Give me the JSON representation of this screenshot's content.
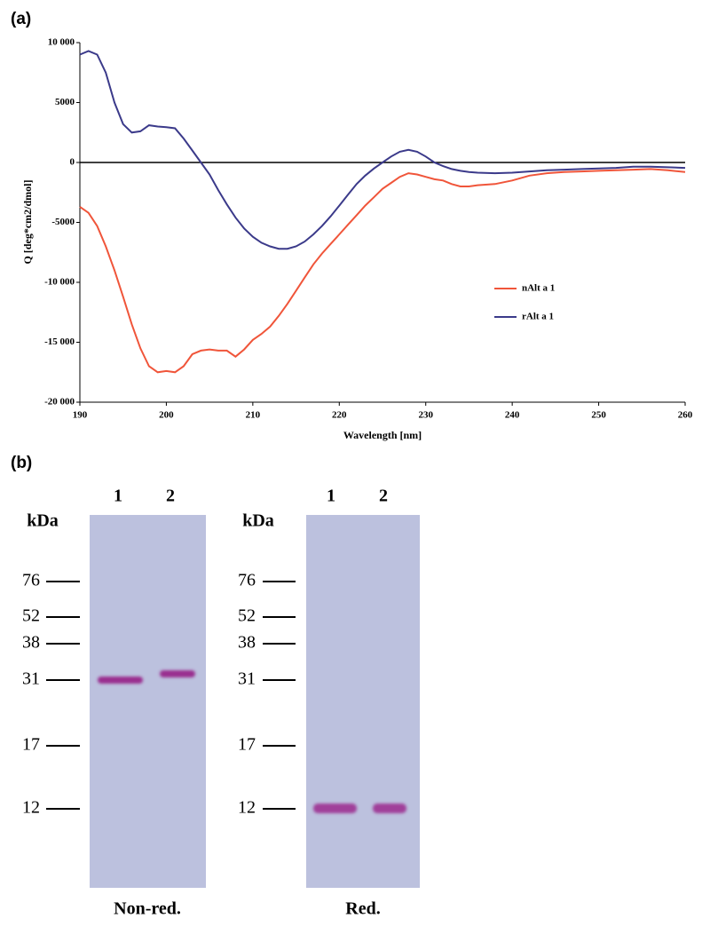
{
  "panel_labels": [
    "(a)",
    "(b)"
  ],
  "chart_data": {
    "type": "line",
    "y_label": "Q [deg*cm2/dmol]",
    "x_label": "Wavelength [nm]",
    "x": [
      190,
      191,
      192,
      193,
      194,
      195,
      196,
      197,
      198,
      199,
      200,
      201,
      202,
      203,
      204,
      205,
      206,
      207,
      208,
      209,
      210,
      211,
      212,
      213,
      214,
      215,
      216,
      217,
      218,
      219,
      220,
      221,
      222,
      223,
      224,
      225,
      226,
      227,
      228,
      229,
      230,
      231,
      232,
      233,
      234,
      235,
      236,
      238,
      240,
      242,
      244,
      246,
      248,
      250,
      252,
      254,
      256,
      258,
      260
    ],
    "series": [
      {
        "name": "nAlt a 1",
        "color": "#f0553a",
        "values": [
          -3700,
          -4200,
          -5300,
          -7000,
          -9000,
          -11200,
          -13500,
          -15500,
          -17000,
          -17500,
          -17400,
          -17500,
          -17000,
          -16000,
          -15700,
          -15600,
          -15700,
          -15700,
          -16200,
          -15600,
          -14800,
          -14300,
          -13700,
          -12800,
          -11800,
          -10700,
          -9600,
          -8500,
          -7600,
          -6800,
          -6000,
          -5200,
          -4400,
          -3600,
          -2900,
          -2200,
          -1700,
          -1200,
          -900,
          -1000,
          -1200,
          -1400,
          -1500,
          -1800,
          -2000,
          -2000,
          -1900,
          -1800,
          -1500,
          -1100,
          -900,
          -800,
          -750,
          -700,
          -650,
          -600,
          -550,
          -650,
          -800
        ]
      },
      {
        "name": "rAlt a 1",
        "color": "#3b3a8a",
        "values": [
          9000,
          9300,
          9000,
          7500,
          5000,
          3200,
          2500,
          2600,
          3100,
          3000,
          2950,
          2850,
          2000,
          1000,
          0,
          -1000,
          -2300,
          -3500,
          -4600,
          -5500,
          -6200,
          -6700,
          -7000,
          -7200,
          -7200,
          -7000,
          -6600,
          -6000,
          -5300,
          -4500,
          -3600,
          -2700,
          -1800,
          -1100,
          -500,
          0,
          500,
          900,
          1050,
          900,
          500,
          0,
          -300,
          -550,
          -700,
          -800,
          -850,
          -900,
          -850,
          -750,
          -650,
          -600,
          -550,
          -500,
          -450,
          -350,
          -350,
          -400,
          -450
        ]
      }
    ],
    "xlim": [
      190,
      260
    ],
    "xticks": [
      190,
      200,
      210,
      220,
      230,
      240,
      250,
      260
    ],
    "ylim": [
      -20000,
      10000
    ],
    "yticks": [
      {
        "value": -20000,
        "label": "-20 000"
      },
      {
        "value": -15000,
        "label": "-15 000"
      },
      {
        "value": -10000,
        "label": "-10 000"
      },
      -5000,
      0,
      5000,
      {
        "value": 10000,
        "label": "10 000"
      }
    ],
    "legend": "right"
  },
  "gels": [
    {
      "unit": "kDa",
      "lanes": [
        "1",
        "2"
      ],
      "markers": [
        76,
        52,
        38,
        31,
        17,
        12
      ],
      "caption": "Non-red."
    },
    {
      "unit": "kDa",
      "lanes": [
        "1",
        "2"
      ],
      "markers": [
        76,
        52,
        38,
        31,
        17,
        12
      ],
      "caption": "Red."
    }
  ]
}
